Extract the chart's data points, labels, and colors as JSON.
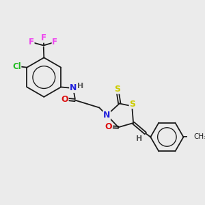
{
  "background_color": "#ebebeb",
  "figsize": [
    3.0,
    3.0
  ],
  "dpi": 100,
  "bond_color": "#1a1a1a",
  "bond_lw": 1.3,
  "atom_colors": {
    "Cl": "#22bb22",
    "F": "#ee44ee",
    "N": "#2222dd",
    "O": "#dd1111",
    "S": "#cccc00",
    "H": "#555555",
    "C": "#1a1a1a"
  }
}
